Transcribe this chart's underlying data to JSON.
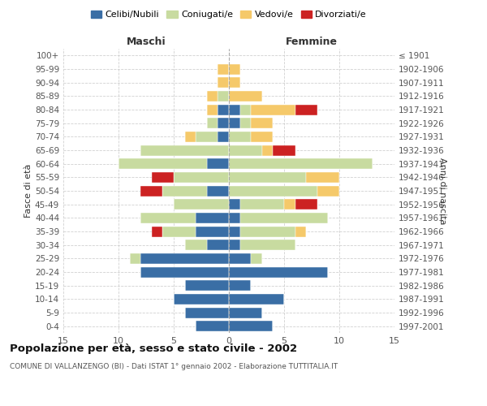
{
  "age_groups": [
    "0-4",
    "5-9",
    "10-14",
    "15-19",
    "20-24",
    "25-29",
    "30-34",
    "35-39",
    "40-44",
    "45-49",
    "50-54",
    "55-59",
    "60-64",
    "65-69",
    "70-74",
    "75-79",
    "80-84",
    "85-89",
    "90-94",
    "95-99",
    "100+"
  ],
  "birth_years": [
    "1997-2001",
    "1992-1996",
    "1987-1991",
    "1982-1986",
    "1977-1981",
    "1972-1976",
    "1967-1971",
    "1962-1966",
    "1957-1961",
    "1952-1956",
    "1947-1951",
    "1942-1946",
    "1937-1941",
    "1932-1936",
    "1927-1931",
    "1922-1926",
    "1917-1921",
    "1912-1916",
    "1907-1911",
    "1902-1906",
    "≤ 1901"
  ],
  "maschi": {
    "celibi": [
      3,
      4,
      5,
      4,
      8,
      8,
      2,
      3,
      3,
      0,
      2,
      0,
      2,
      0,
      1,
      1,
      1,
      0,
      0,
      0,
      0
    ],
    "coniugati": [
      0,
      0,
      0,
      0,
      0,
      1,
      2,
      3,
      5,
      5,
      4,
      5,
      8,
      8,
      2,
      1,
      0,
      1,
      0,
      0,
      0
    ],
    "vedovi": [
      0,
      0,
      0,
      0,
      0,
      0,
      0,
      0,
      0,
      0,
      0,
      0,
      0,
      0,
      1,
      0,
      1,
      1,
      1,
      1,
      0
    ],
    "divorziati": [
      0,
      0,
      0,
      0,
      0,
      0,
      0,
      1,
      0,
      0,
      2,
      2,
      0,
      0,
      0,
      0,
      0,
      0,
      0,
      0,
      0
    ]
  },
  "femmine": {
    "celibi": [
      4,
      3,
      5,
      2,
      9,
      2,
      1,
      1,
      1,
      1,
      0,
      0,
      0,
      0,
      0,
      1,
      1,
      0,
      0,
      0,
      0
    ],
    "coniugati": [
      0,
      0,
      0,
      0,
      0,
      1,
      5,
      5,
      8,
      4,
      8,
      7,
      13,
      3,
      2,
      1,
      1,
      0,
      0,
      0,
      0
    ],
    "vedovi": [
      0,
      0,
      0,
      0,
      0,
      0,
      0,
      1,
      0,
      1,
      2,
      3,
      0,
      1,
      2,
      2,
      4,
      3,
      1,
      1,
      0
    ],
    "divorziati": [
      0,
      0,
      0,
      0,
      0,
      0,
      0,
      0,
      0,
      2,
      0,
      0,
      0,
      2,
      0,
      0,
      2,
      0,
      0,
      0,
      0
    ]
  },
  "colors": {
    "celibi": "#3a6ea5",
    "coniugati": "#c8dba0",
    "vedovi": "#f5c96a",
    "divorziati": "#cc2222"
  },
  "xlim": 15,
  "title": "Popolazione per età, sesso e stato civile - 2002",
  "subtitle": "COMUNE DI VALLANZENGO (BI) - Dati ISTAT 1° gennaio 2002 - Elaborazione TUTTITALIA.IT",
  "ylabel_left": "Fasce di età",
  "ylabel_right": "Anni di nascita",
  "xlabel_left": "Maschi",
  "xlabel_right": "Femmine",
  "background_color": "#ffffff",
  "grid_color": "#cccccc"
}
